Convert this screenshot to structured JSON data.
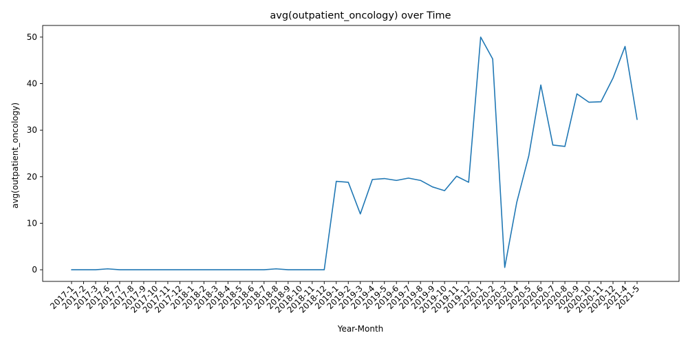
{
  "chart_data": {
    "type": "line",
    "title": "avg(outpatient_oncology) over Time",
    "xlabel": "Year-Month",
    "ylabel": "avg(outpatient_oncology)",
    "ylim": [
      -2.5,
      52.5
    ],
    "yticks": [
      0,
      10,
      20,
      30,
      40,
      50
    ],
    "grid": false,
    "categories": [
      "2017-1",
      "2017-2",
      "2017-3",
      "2017-6",
      "2017-7",
      "2017-8",
      "2017-9",
      "2017-10",
      "2017-11",
      "2017-12",
      "2018-1",
      "2018-2",
      "2018-3",
      "2018-4",
      "2018-5",
      "2018-6",
      "2018-7",
      "2018-8",
      "2018-9",
      "2018-10",
      "2018-11",
      "2018-12",
      "2019-1",
      "2019-2",
      "2019-3",
      "2019-4",
      "2019-5",
      "2019-6",
      "2019-7",
      "2019-8",
      "2019-9",
      "2019-10",
      "2019-11",
      "2019-12",
      "2020-1",
      "2020-2",
      "2020-3",
      "2020-4",
      "2020-5",
      "2020-6",
      "2020-7",
      "2020-8",
      "2020-9",
      "2020-10",
      "2020-11",
      "2020-12",
      "2021-4",
      "2021-5"
    ],
    "series": [
      {
        "color": "#1f77b4",
        "values": [
          0,
          0,
          0,
          0.2,
          0,
          0,
          0,
          0,
          0,
          0,
          0,
          0,
          0,
          0,
          0,
          0,
          0,
          0.2,
          0,
          0,
          0,
          0,
          19.0,
          18.8,
          12.0,
          19.4,
          19.6,
          19.2,
          19.7,
          19.2,
          17.8,
          17.0,
          20.1,
          18.8,
          50.0,
          45.3,
          0.5,
          14.5,
          24.5,
          39.7,
          26.8,
          26.5,
          37.8,
          36.0,
          36.1,
          41.2,
          48.0,
          32.3
        ]
      }
    ]
  }
}
